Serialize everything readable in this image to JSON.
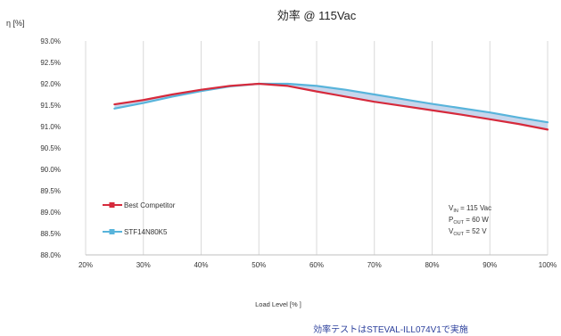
{
  "chart_data": {
    "type": "line",
    "title": "効率 @ 115Vac",
    "ylabel": "η [%]",
    "xlabel": "Load Level [% ]",
    "x": [
      25,
      30,
      35,
      40,
      45,
      50,
      55,
      60,
      65,
      70,
      75,
      80,
      85,
      90,
      95,
      100
    ],
    "xticks": [
      "20%",
      "30%",
      "40%",
      "50%",
      "60%",
      "70%",
      "80%",
      "90%",
      "100%"
    ],
    "xtick_values": [
      20,
      30,
      40,
      50,
      60,
      70,
      80,
      90,
      100
    ],
    "yticks": [
      "93.0%",
      "92.5%",
      "92.0%",
      "91.5%",
      "91.0%",
      "90.5%",
      "90.0%",
      "89.5%",
      "89.0%",
      "88.5%",
      "88.0%"
    ],
    "ytick_values": [
      93.0,
      92.5,
      92.0,
      91.5,
      91.0,
      90.5,
      90.0,
      89.5,
      89.0,
      88.5,
      88.0
    ],
    "xlim": [
      20,
      100
    ],
    "ylim": [
      88.0,
      93.0
    ],
    "grid": "vertical",
    "legend_position": "bottom-left",
    "series": [
      {
        "name": "Best Competitor",
        "color": "#d62a3c",
        "values": [
          91.52,
          91.62,
          91.75,
          91.86,
          91.95,
          92.0,
          91.95,
          91.82,
          91.7,
          91.58,
          91.48,
          91.38,
          91.28,
          91.17,
          91.06,
          90.93
        ]
      },
      {
        "name": "STF14N80K5",
        "color": "#58b4db",
        "values": [
          91.42,
          91.55,
          91.7,
          91.83,
          91.94,
          92.0,
          92.0,
          91.95,
          91.86,
          91.75,
          91.64,
          91.53,
          91.43,
          91.33,
          91.21,
          91.1
        ]
      }
    ],
    "fill_between_color": "#c7d6ec",
    "conditions": [
      {
        "main": "V",
        "sub": "IN",
        "value": " = 115 Vac"
      },
      {
        "main": "P",
        "sub": "OUT",
        "value": " = 60 W"
      },
      {
        "main": "V",
        "sub": "OUT",
        "value": " = 52 V"
      }
    ]
  },
  "footnote": "効率テストはSTEVAL-ILL074V1で実施"
}
